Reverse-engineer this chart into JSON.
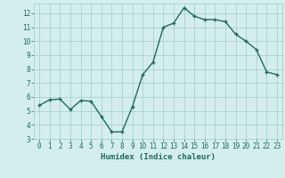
{
  "x": [
    0,
    1,
    2,
    3,
    4,
    5,
    6,
    7,
    8,
    9,
    10,
    11,
    12,
    13,
    14,
    15,
    16,
    17,
    18,
    19,
    20,
    21,
    22,
    23
  ],
  "y": [
    5.4,
    5.8,
    5.85,
    5.1,
    5.75,
    5.7,
    4.6,
    3.5,
    3.5,
    5.3,
    7.6,
    8.5,
    11.0,
    11.3,
    12.4,
    11.8,
    11.55,
    11.55,
    11.4,
    10.5,
    10.0,
    9.4,
    7.8,
    7.6
  ],
  "xlim": [
    -0.5,
    23.5
  ],
  "ylim": [
    3,
    12.7
  ],
  "yticks": [
    3,
    4,
    5,
    6,
    7,
    8,
    9,
    10,
    11,
    12
  ],
  "xticks": [
    0,
    1,
    2,
    3,
    4,
    5,
    6,
    7,
    8,
    9,
    10,
    11,
    12,
    13,
    14,
    15,
    16,
    17,
    18,
    19,
    20,
    21,
    22,
    23
  ],
  "xlabel": "Humidex (Indice chaleur)",
  "line_color": "#1f6b5a",
  "marker_color": "#1f6b5a",
  "bg_color": "#d4eeee",
  "grid_color": "#aad0d0",
  "text_color": "#1f6b5a",
  "font_family": "monospace",
  "tick_fontsize": 5.5,
  "xlabel_fontsize": 6.5
}
